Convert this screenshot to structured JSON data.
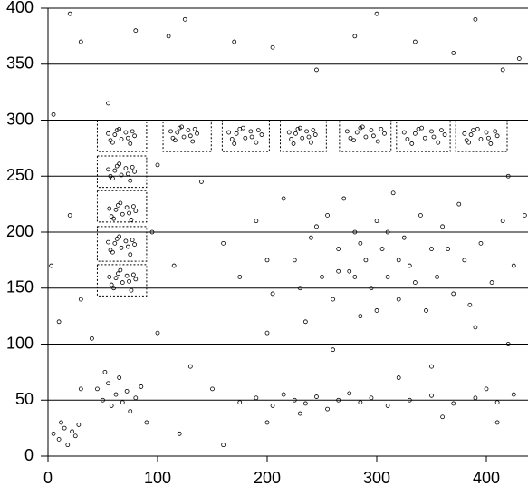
{
  "chart_data": {
    "type": "scatter",
    "xlim": [
      0,
      438
    ],
    "ylim": [
      0,
      400
    ],
    "xticks": [
      0,
      100,
      200,
      300,
      400
    ],
    "yticks": [
      0,
      50,
      100,
      150,
      200,
      250,
      300,
      350,
      400
    ],
    "grid": true,
    "color": "#000000",
    "regions": [
      {
        "xlim": [
          45,
          90
        ],
        "ylim": [
          272,
          300
        ]
      },
      {
        "xlim": [
          105,
          149
        ],
        "ylim": [
          272,
          300
        ]
      },
      {
        "xlim": [
          159,
          202
        ],
        "ylim": [
          272,
          300
        ]
      },
      {
        "xlim": [
          212,
          254
        ],
        "ylim": [
          272,
          300
        ]
      },
      {
        "xlim": [
          266,
          313
        ],
        "ylim": [
          272,
          300
        ]
      },
      {
        "xlim": [
          318,
          367
        ],
        "ylim": [
          272,
          300
        ]
      },
      {
        "xlim": [
          372,
          419
        ],
        "ylim": [
          272,
          300
        ]
      },
      {
        "xlim": [
          45,
          90
        ],
        "ylim": [
          240,
          268
        ]
      },
      {
        "xlim": [
          45,
          90
        ],
        "ylim": [
          209,
          237
        ]
      },
      {
        "xlim": [
          45,
          90
        ],
        "ylim": [
          174,
          205
        ]
      },
      {
        "xlim": [
          45,
          90
        ],
        "ylim": [
          143,
          171
        ]
      }
    ],
    "x": [
      55,
      59,
      63,
      67,
      71,
      75,
      79,
      57,
      73,
      65,
      77,
      61,
      112,
      116,
      120,
      124,
      128,
      132,
      136,
      114,
      130,
      122,
      134,
      118,
      165,
      170,
      175,
      180,
      185,
      190,
      195,
      168,
      186,
      178,
      192,
      172,
      220,
      224,
      228,
      232,
      236,
      240,
      244,
      222,
      238,
      230,
      242,
      226,
      273,
      279,
      285,
      290,
      295,
      301,
      307,
      276,
      297,
      287,
      304,
      282,
      325,
      332,
      338,
      344,
      350,
      356,
      362,
      328,
      352,
      341,
      359,
      335,
      380,
      384,
      388,
      395,
      400,
      404,
      410,
      382,
      402,
      392,
      408,
      386,
      55,
      59,
      63,
      67,
      71,
      75,
      79,
      57,
      73,
      65,
      77,
      61,
      56,
      60,
      64,
      68,
      72,
      76,
      80,
      58,
      74,
      66,
      78,
      62,
      55,
      59,
      63,
      67,
      71,
      75,
      79,
      57,
      73,
      65,
      77,
      61,
      56,
      60,
      64,
      68,
      72,
      76,
      80,
      58,
      74,
      66,
      78,
      62,
      160,
      175,
      190,
      205,
      215,
      225,
      235,
      240,
      250,
      255,
      260,
      265,
      270,
      275,
      280,
      285,
      290,
      295,
      300,
      305,
      310,
      315,
      320,
      325,
      330,
      340,
      345,
      350,
      355,
      360,
      370,
      375,
      380,
      390,
      395,
      405,
      415,
      425,
      200,
      230,
      245,
      265,
      285,
      300,
      310,
      320,
      335,
      365,
      385,
      280,
      175,
      190,
      205,
      215,
      225,
      235,
      245,
      255,
      265,
      275,
      285,
      295,
      310,
      330,
      350,
      370,
      390,
      410,
      425,
      200,
      230,
      320,
      360,
      400,
      45,
      50,
      55,
      58,
      62,
      65,
      68,
      72,
      75,
      52,
      80,
      85,
      5,
      10,
      15,
      18,
      22,
      25,
      28,
      12,
      20,
      30,
      55,
      80,
      110,
      125,
      170,
      205,
      245,
      280,
      300,
      335,
      370,
      390,
      415,
      430,
      5,
      3,
      10,
      20,
      30,
      40,
      100,
      130,
      150,
      120,
      160,
      90,
      100,
      420,
      435,
      200,
      260,
      350,
      420,
      410,
      30,
      95,
      115,
      140
    ],
    "y": [
      288,
      280,
      291,
      283,
      289,
      279,
      286,
      282,
      284,
      292,
      290,
      287,
      290,
      282,
      293,
      285,
      291,
      281,
      288,
      284,
      286,
      294,
      292,
      289,
      289,
      279,
      292,
      284,
      290,
      280,
      287,
      283,
      285,
      293,
      291,
      288,
      289,
      279,
      292,
      284,
      290,
      280,
      287,
      283,
      285,
      293,
      291,
      288,
      290,
      282,
      293,
      285,
      291,
      281,
      288,
      284,
      286,
      294,
      292,
      289,
      289,
      279,
      292,
      284,
      290,
      280,
      287,
      283,
      285,
      293,
      291,
      288,
      288,
      280,
      291,
      283,
      289,
      279,
      286,
      282,
      284,
      292,
      290,
      287,
      256,
      248,
      259,
      251,
      257,
      246,
      254,
      250,
      252,
      261,
      258,
      255,
      221,
      212,
      224,
      216,
      222,
      211,
      219,
      214,
      217,
      226,
      223,
      220,
      191,
      182,
      194,
      186,
      192,
      180,
      189,
      184,
      187,
      196,
      193,
      190,
      160,
      150,
      163,
      155,
      161,
      148,
      158,
      153,
      156,
      166,
      162,
      159,
      190,
      160,
      210,
      145,
      230,
      175,
      120,
      195,
      160,
      215,
      140,
      185,
      230,
      165,
      200,
      125,
      175,
      150,
      210,
      185,
      160,
      235,
      140,
      195,
      170,
      215,
      130,
      185,
      160,
      205,
      145,
      225,
      175,
      115,
      190,
      155,
      210,
      170,
      175,
      150,
      205,
      165,
      190,
      130,
      200,
      175,
      155,
      185,
      135,
      160,
      48,
      52,
      45,
      55,
      50,
      47,
      53,
      42,
      50,
      56,
      48,
      52,
      45,
      50,
      54,
      47,
      52,
      48,
      55,
      30,
      38,
      70,
      35,
      60,
      60,
      50,
      65,
      45,
      55,
      70,
      48,
      58,
      40,
      75,
      52,
      62,
      20,
      15,
      25,
      10,
      22,
      18,
      28,
      30,
      395,
      370,
      315,
      380,
      375,
      390,
      370,
      365,
      345,
      375,
      395,
      370,
      360,
      390,
      345,
      355,
      305,
      170,
      120,
      215,
      140,
      105,
      110,
      80,
      60,
      20,
      10,
      30,
      260,
      250,
      215,
      110,
      95,
      80,
      100,
      30,
      60,
      200,
      170,
      245
    ]
  }
}
